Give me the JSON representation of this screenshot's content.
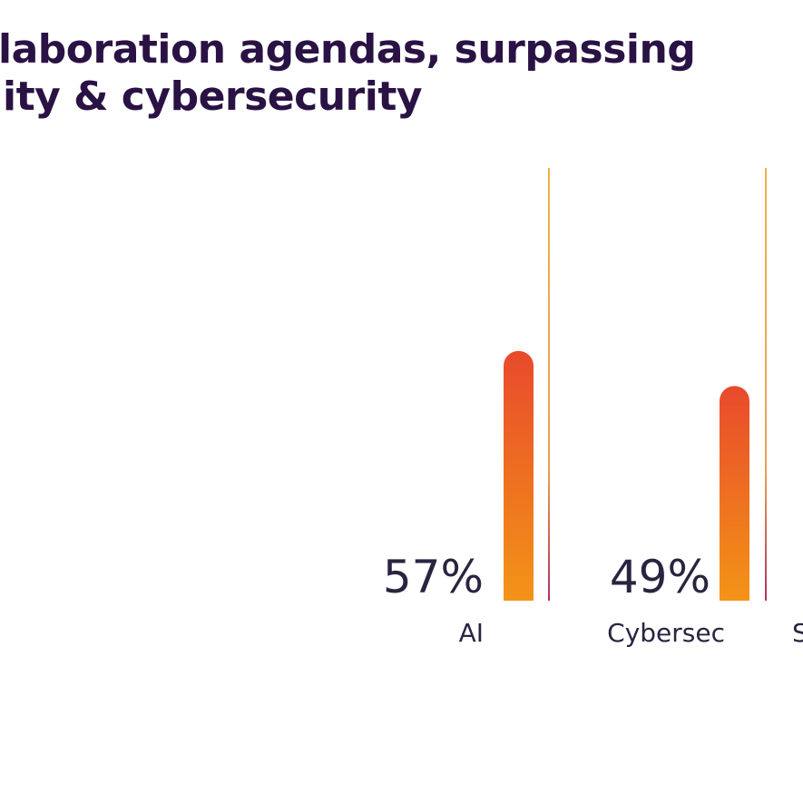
{
  "title_lines": [
    "laboration agendas, surpassing",
    "ity & cybersecurity"
  ],
  "colors": {
    "title": "#2a1245",
    "text": "#2a2440",
    "bar_top": "#e84a2c",
    "bar_bottom": "#f39417",
    "divider": "#f0b24a"
  },
  "chart_data": {
    "type": "bar",
    "categories": [
      "AI",
      "Cybersec",
      "S"
    ],
    "values": [
      57,
      49,
      null
    ],
    "value_labels": [
      "57%",
      "49%",
      ""
    ],
    "ylim": [
      0,
      100
    ],
    "grid": false,
    "legend": "none"
  }
}
